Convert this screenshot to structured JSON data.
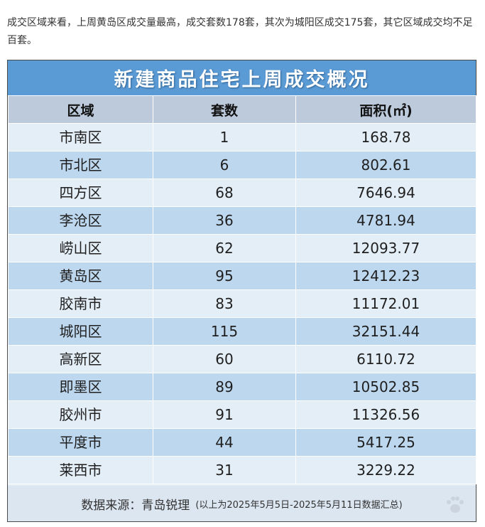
{
  "intro_text": "成交区域来看，上周黄岛区成交量最高，成交套数178套，其次为城阳区成交175套，其它区域成交均不足百套。",
  "table": {
    "title": "新建商品住宅上周成交概况",
    "headers": [
      "区域",
      "套数",
      "面积(㎡)"
    ],
    "rows": [
      [
        "市南区",
        "1",
        "168.78"
      ],
      [
        "市北区",
        "6",
        "802.61"
      ],
      [
        "四方区",
        "68",
        "7646.94"
      ],
      [
        "李沧区",
        "36",
        "4781.94"
      ],
      [
        "崂山区",
        "62",
        "12093.77"
      ],
      [
        "黄岛区",
        "95",
        "12412.23"
      ],
      [
        "胶南市",
        "83",
        "11172.01"
      ],
      [
        "城阳区",
        "115",
        "32151.44"
      ],
      [
        "高新区",
        "60",
        "6110.72"
      ],
      [
        "即墨区",
        "89",
        "10502.85"
      ],
      [
        "胶州市",
        "91",
        "11326.56"
      ],
      [
        "平度市",
        "44",
        "5417.25"
      ],
      [
        "莱西市",
        "31",
        "3229.22"
      ]
    ],
    "source_label": "数据来源：青岛锐理",
    "source_note": "(以上为2025年5月5日-2025年5月11日数据汇总)"
  },
  "colors": {
    "title_bar": "#5b9bd5",
    "header_row": "#bccadb",
    "row_light": "#e4eef7",
    "row_dark": "#bdd7ee"
  },
  "icons": {
    "watermark": "paw-icon"
  }
}
